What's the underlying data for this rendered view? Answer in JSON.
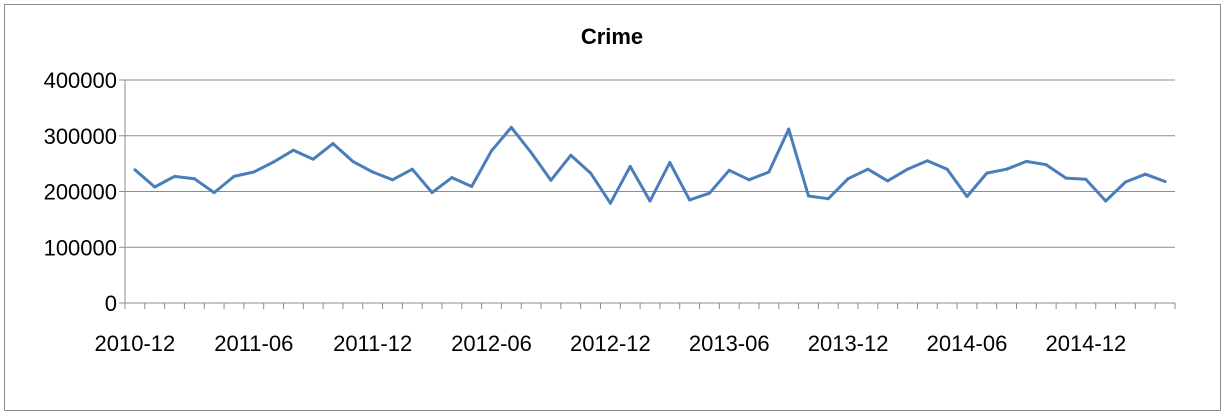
{
  "chart_data": {
    "type": "line",
    "title": "Crime",
    "xlabel": "",
    "ylabel": "",
    "ylim": [
      0,
      400000
    ],
    "yticks": [
      0,
      100000,
      200000,
      300000,
      400000
    ],
    "xtick_labels": [
      "2010-12",
      "2011-06",
      "2011-12",
      "2012-06",
      "2012-12",
      "2013-06",
      "2013-12",
      "2014-06",
      "2014-12"
    ],
    "grid": true,
    "legend": "none",
    "line_color": "#4a7ebb",
    "x": [
      "2010-12",
      "2011-01",
      "2011-02",
      "2011-03",
      "2011-04",
      "2011-05",
      "2011-06",
      "2011-07",
      "2011-08",
      "2011-09",
      "2011-10",
      "2011-11",
      "2011-12",
      "2012-01",
      "2012-02",
      "2012-03",
      "2012-04",
      "2012-05",
      "2012-06",
      "2012-07",
      "2012-08",
      "2012-09",
      "2012-10",
      "2012-11",
      "2012-12",
      "2013-01",
      "2013-02",
      "2013-03",
      "2013-04",
      "2013-05",
      "2013-06",
      "2013-07",
      "2013-08",
      "2013-09",
      "2013-10",
      "2013-11",
      "2013-12",
      "2014-01",
      "2014-02",
      "2014-03",
      "2014-04",
      "2014-05",
      "2014-06",
      "2014-07",
      "2014-08",
      "2014-09",
      "2014-10",
      "2014-11",
      "2014-12",
      "2015-01",
      "2015-02",
      "2015-03",
      "2015-04"
    ],
    "series": [
      {
        "values": [
          239000,
          208000,
          227000,
          223000,
          198000,
          227000,
          235000,
          253000,
          274000,
          258000,
          286000,
          254000,
          235000,
          221000,
          240000,
          198000,
          225000,
          209000,
          273000,
          315000,
          270000,
          220000,
          265000,
          233000,
          179000,
          245000,
          183000,
          252000,
          185000,
          197000,
          238000,
          221000,
          235000,
          312000,
          192000,
          187000,
          223000,
          240000,
          219000,
          240000,
          255000,
          240000,
          191000,
          233000,
          240000,
          254000,
          248000,
          224000,
          222000,
          183000,
          217000,
          231000,
          218000
        ]
      }
    ]
  }
}
